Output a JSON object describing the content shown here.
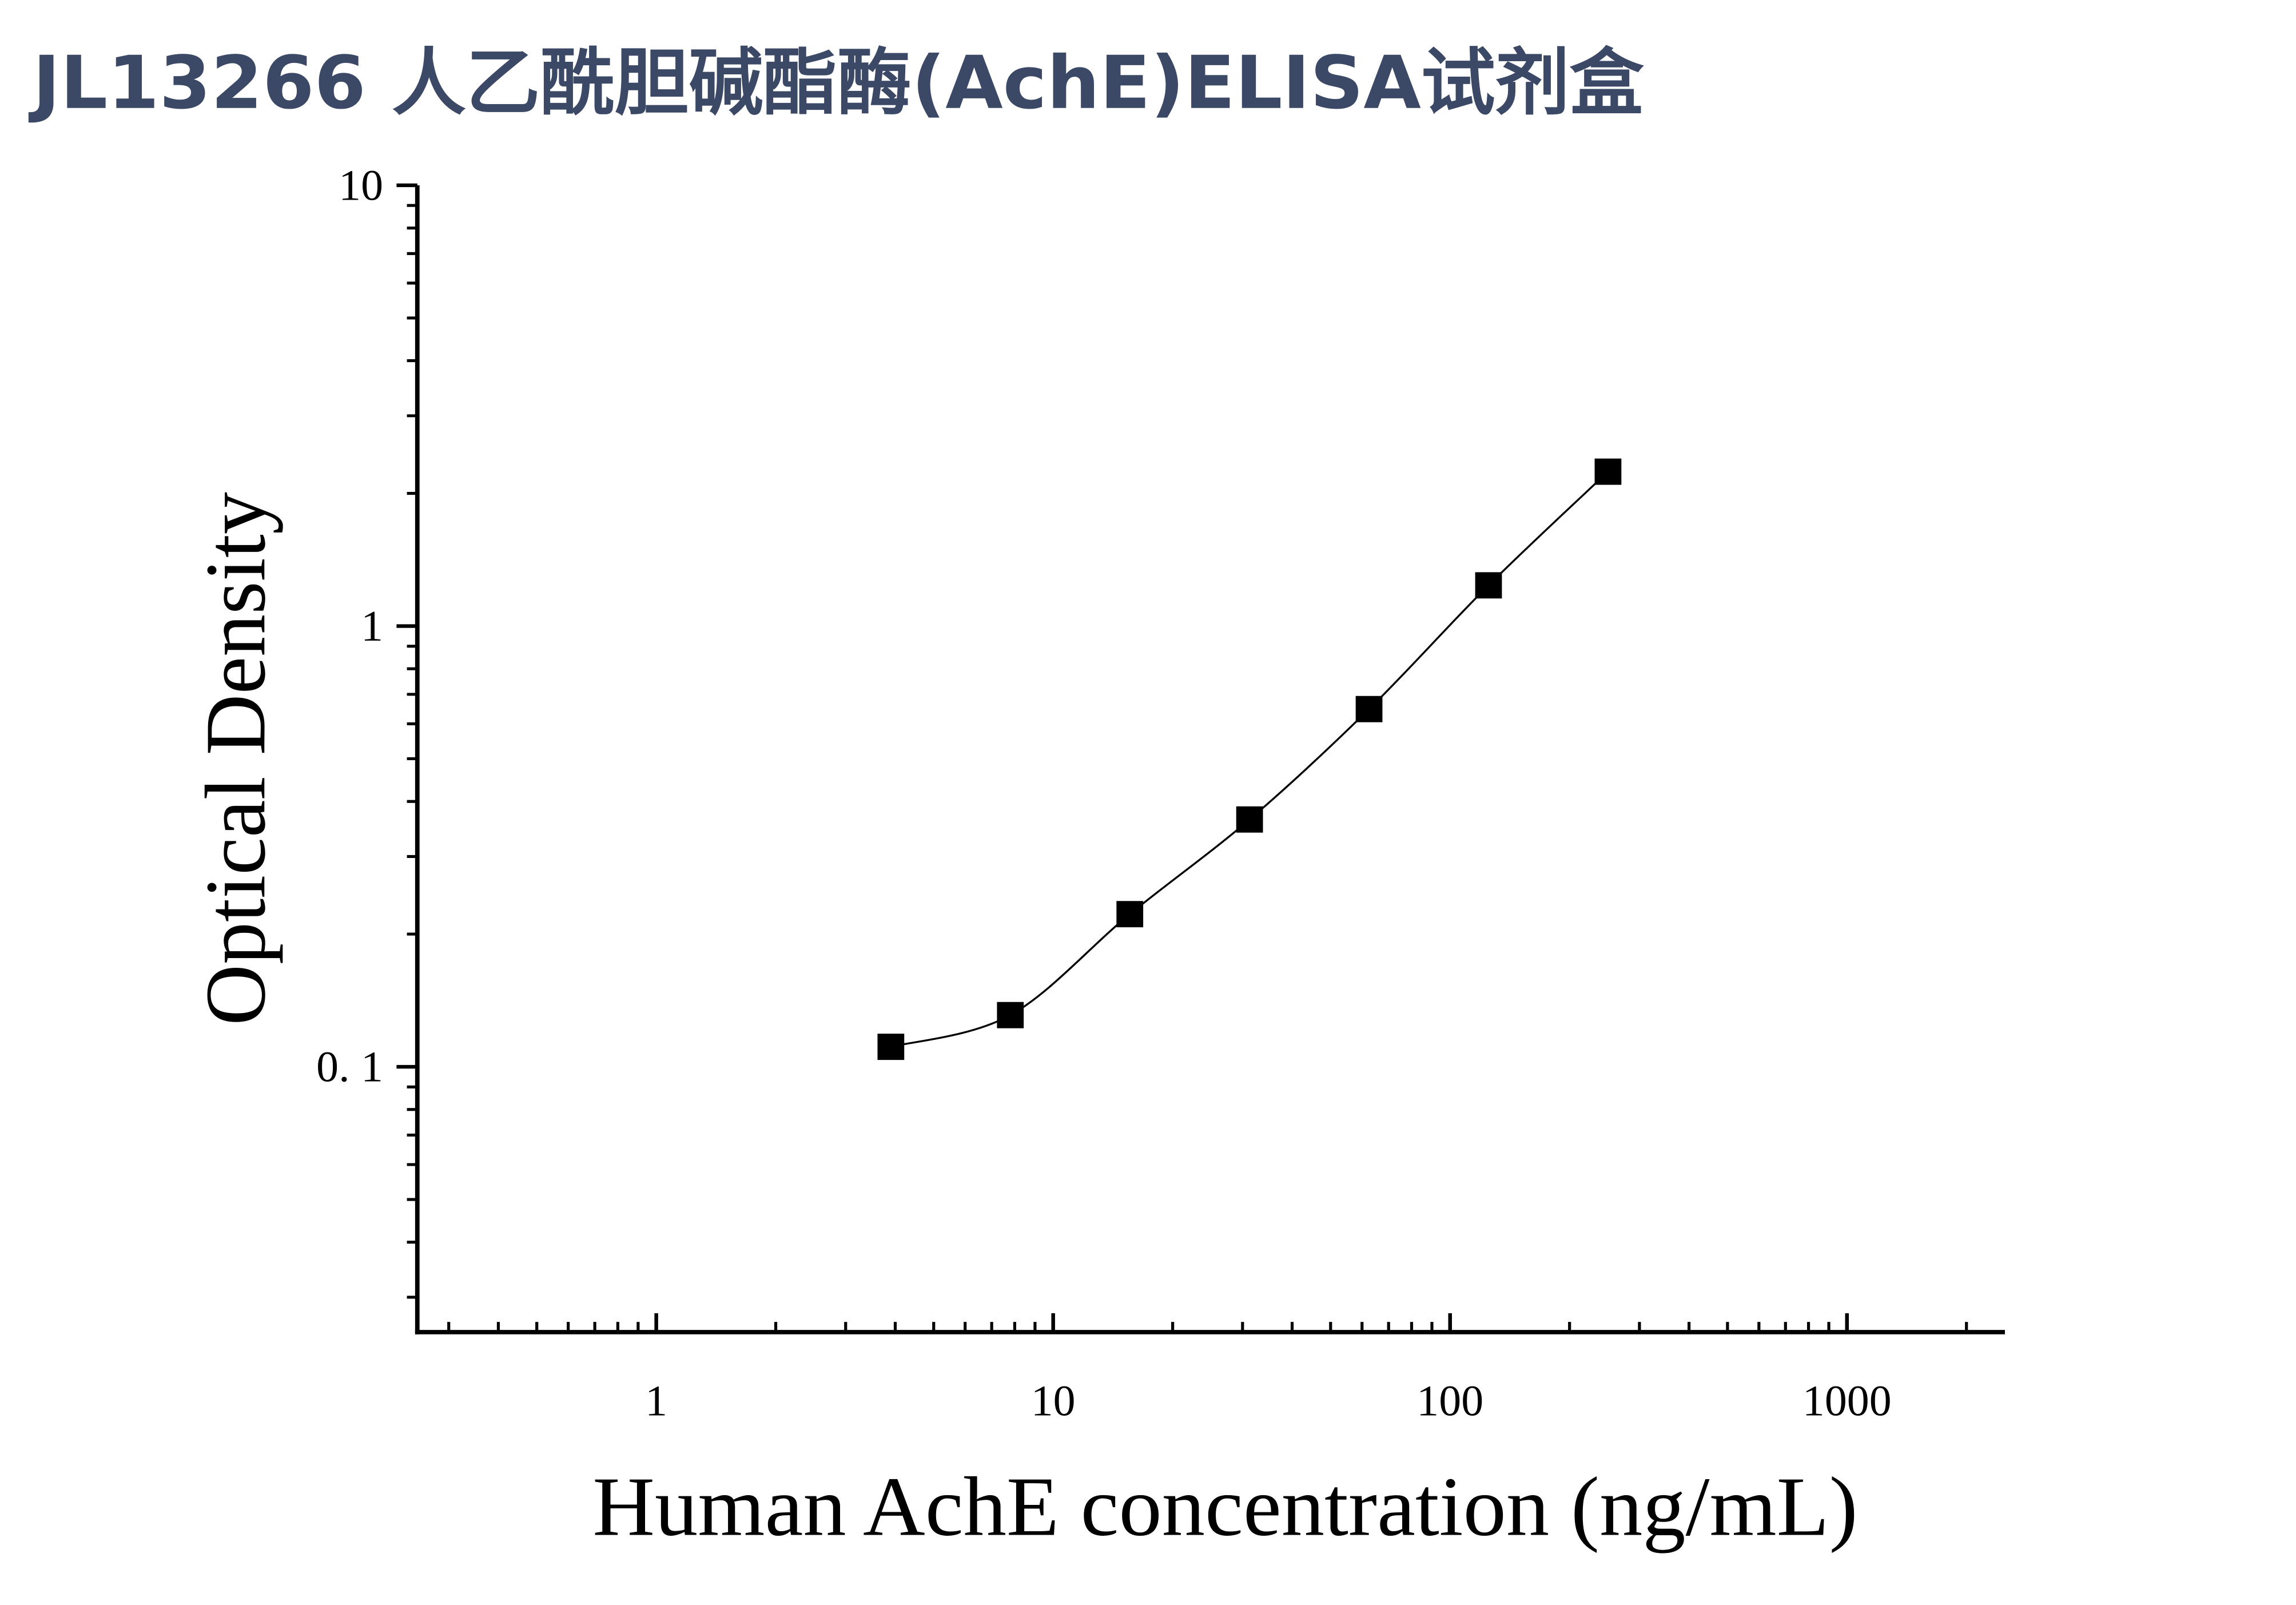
{
  "chart_data": {
    "type": "scatter",
    "title": "JL13266 人乙酰胆碱酯酶(AchE)ELISA试剂盒",
    "x_label": "Human AchE concentration (ng/mL)",
    "y_label": "Optical Density",
    "x": [
      3.9,
      7.8,
      15.6,
      31.25,
      62.5,
      125,
      250
    ],
    "series": [
      {
        "color": "#000000",
        "values": [
          0.111,
          0.131,
          0.222,
          0.364,
          0.648,
          1.237,
          2.24
        ]
      }
    ],
    "xlim": [
      0.25,
      2500
    ],
    "ylim": [
      0.025,
      10
    ],
    "xticks": [
      1,
      10,
      100,
      1000
    ],
    "yticks": [
      {
        "value": 0.1,
        "label": "0. 1"
      },
      1,
      10
    ],
    "x_log": true,
    "y_log": true,
    "fit_curve": true
  }
}
